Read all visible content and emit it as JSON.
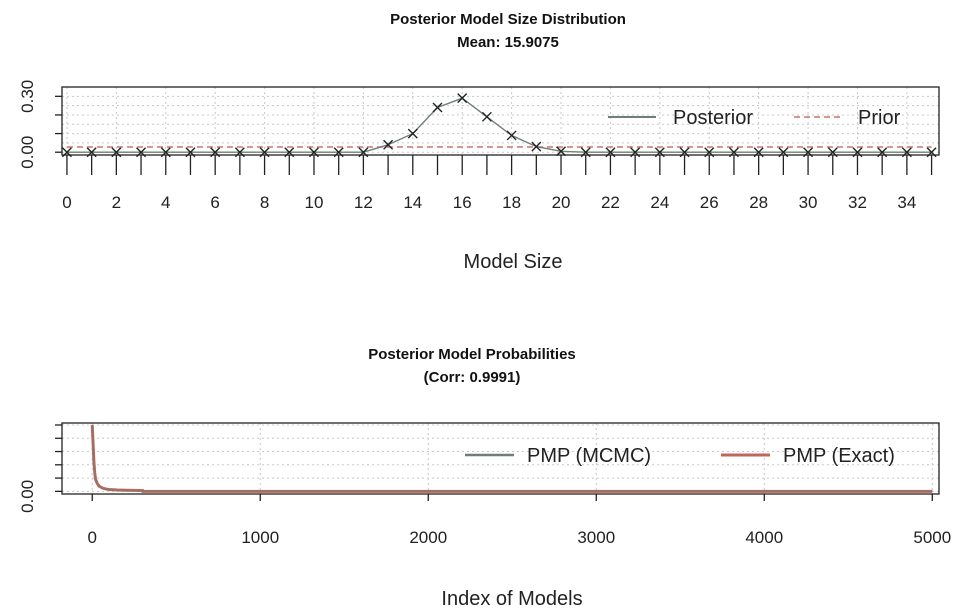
{
  "colors": {
    "posterior": "#6f7f76",
    "prior": "#c8756a",
    "pmp_mcmc": "#6f7f76",
    "pmp_exact": "#c0665a",
    "grid": "#c8c8c8",
    "marker": "#222222"
  },
  "chart_data": [
    {
      "type": "line",
      "title": "Posterior Model Size Distribution",
      "subtitle": "Mean: 15.9075",
      "xlabel": "Model Size",
      "ylabel": "",
      "xlim": [
        0,
        35
      ],
      "ylim": [
        0,
        0.3
      ],
      "x_tick_labels": [
        "0",
        "2",
        "4",
        "6",
        "8",
        "10",
        "12",
        "14",
        "16",
        "18",
        "20",
        "22",
        "24",
        "26",
        "28",
        "30",
        "32",
        "34"
      ],
      "y_tick_labels": [
        "0.00",
        "0.30"
      ],
      "grid": true,
      "legend": {
        "placement": "top-right",
        "entries": [
          "Posterior",
          "Prior"
        ]
      },
      "x": [
        0,
        1,
        2,
        3,
        4,
        5,
        6,
        7,
        8,
        9,
        10,
        11,
        12,
        13,
        14,
        15,
        16,
        17,
        18,
        19,
        20,
        21,
        22,
        23,
        24,
        25,
        26,
        27,
        28,
        29,
        30,
        31,
        32,
        33,
        34,
        35
      ],
      "series": [
        {
          "name": "Posterior",
          "style": "solid",
          "values": [
            0,
            0,
            0,
            0,
            0,
            0,
            0,
            0,
            0,
            0,
            0,
            0,
            0,
            0.04,
            0.1,
            0.24,
            0.29,
            0.19,
            0.09,
            0.03,
            0.005,
            0,
            0,
            0,
            0,
            0,
            0,
            0,
            0,
            0,
            0,
            0,
            0,
            0,
            0,
            0
          ]
        },
        {
          "name": "Prior",
          "style": "dashed",
          "values": [
            0.028,
            0.028,
            0.028,
            0.028,
            0.028,
            0.028,
            0.028,
            0.028,
            0.028,
            0.028,
            0.028,
            0.028,
            0.028,
            0.028,
            0.028,
            0.028,
            0.028,
            0.028,
            0.028,
            0.028,
            0.028,
            0.028,
            0.028,
            0.028,
            0.028,
            0.028,
            0.028,
            0.028,
            0.028,
            0.028,
            0.028,
            0.028,
            0.028,
            0.028,
            0.028,
            0.028
          ]
        }
      ]
    },
    {
      "type": "line",
      "title": "Posterior Model Probabilities",
      "subtitle": "(Corr: 0.9991)",
      "xlabel": "Index of Models",
      "ylabel": "",
      "xlim": [
        0,
        5000
      ],
      "ylim": [
        0,
        0.05
      ],
      "x_tick_labels": [
        "0",
        "1000",
        "2000",
        "3000",
        "4000",
        "5000"
      ],
      "y_tick_labels": [
        "0.00"
      ],
      "grid": true,
      "legend": {
        "placement": "top-right",
        "entries": [
          "PMP (MCMC)",
          "PMP (Exact)"
        ]
      },
      "x": [
        0,
        5,
        10,
        15,
        20,
        30,
        40,
        60,
        80,
        100,
        150,
        200,
        300,
        301,
        1000,
        2000,
        3000,
        4000,
        5000
      ],
      "series": [
        {
          "name": "PMP (MCMC)",
          "values": [
            0.05,
            0.036,
            0.022,
            0.014,
            0.009,
            0.006,
            0.004,
            0.0025,
            0.0018,
            0.0014,
            0.001,
            0.0008,
            0.0006,
            0,
            0,
            0,
            0,
            0,
            0
          ]
        },
        {
          "name": "PMP (Exact)",
          "values": [
            0.05,
            0.036,
            0.022,
            0.014,
            0.009,
            0.006,
            0.004,
            0.0025,
            0.0018,
            0.0014,
            0.001,
            0.0008,
            0.0006,
            0,
            0,
            0,
            0,
            0,
            0
          ]
        }
      ]
    }
  ]
}
